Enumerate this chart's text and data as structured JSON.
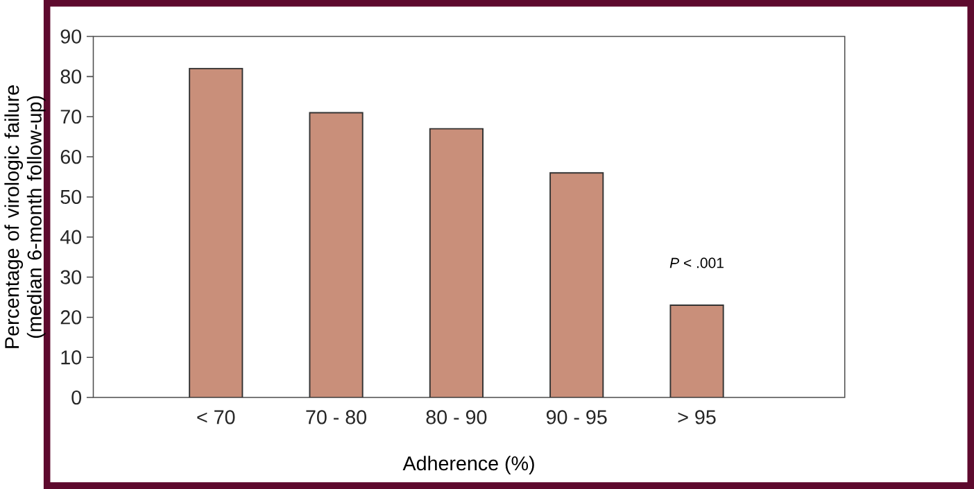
{
  "chart_data": {
    "type": "bar",
    "xlabel": "Adherence (%)",
    "ylabel": "Percentage of virologic failure (median 6-month follow-up)",
    "categories": [
      "< 70",
      "70 - 80",
      "80 - 90",
      "90 - 95",
      "> 95"
    ],
    "values": [
      82,
      71,
      67,
      56,
      23
    ],
    "color": "#c98f7a",
    "ylim": [
      0,
      90
    ],
    "yticks": [
      0,
      10,
      20,
      30,
      40,
      50,
      60,
      70,
      80,
      90
    ],
    "annotations": [
      "*P* < .001"
    ]
  }
}
